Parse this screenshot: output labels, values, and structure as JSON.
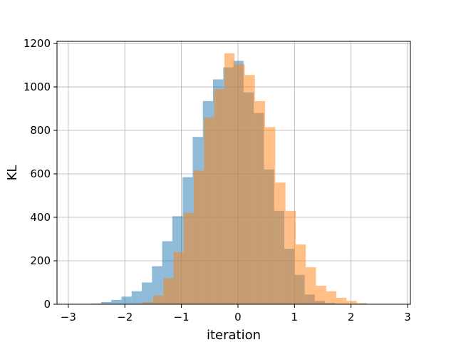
{
  "chart_data": {
    "type": "bar",
    "title": "",
    "xlabel": "iteration",
    "ylabel": "KL",
    "xlim": [
      -3.2,
      3.05
    ],
    "ylim": [
      0,
      1210
    ],
    "xticks": [
      -3,
      -2,
      -1,
      0,
      1,
      2,
      3
    ],
    "yticks": [
      0,
      200,
      400,
      600,
      800,
      1000,
      1200
    ],
    "grid": true,
    "legend": "none",
    "series": [
      {
        "color": "#1f77b4",
        "opacity": 0.5,
        "bins": [
          {
            "x0": -2.6,
            "x1": -2.42,
            "count": 3
          },
          {
            "x0": -2.42,
            "x1": -2.24,
            "count": 10
          },
          {
            "x0": -2.24,
            "x1": -2.06,
            "count": 20
          },
          {
            "x0": -2.06,
            "x1": -1.88,
            "count": 35
          },
          {
            "x0": -1.88,
            "x1": -1.7,
            "count": 60
          },
          {
            "x0": -1.7,
            "x1": -1.52,
            "count": 100
          },
          {
            "x0": -1.52,
            "x1": -1.34,
            "count": 175
          },
          {
            "x0": -1.34,
            "x1": -1.16,
            "count": 290
          },
          {
            "x0": -1.16,
            "x1": -0.98,
            "count": 405
          },
          {
            "x0": -0.98,
            "x1": -0.8,
            "count": 585
          },
          {
            "x0": -0.8,
            "x1": -0.62,
            "count": 770
          },
          {
            "x0": -0.62,
            "x1": -0.44,
            "count": 935
          },
          {
            "x0": -0.44,
            "x1": -0.26,
            "count": 1035
          },
          {
            "x0": -0.26,
            "x1": -0.08,
            "count": 1090
          },
          {
            "x0": -0.08,
            "x1": 0.1,
            "count": 1120
          },
          {
            "x0": 0.1,
            "x1": 0.28,
            "count": 975
          },
          {
            "x0": 0.28,
            "x1": 0.46,
            "count": 880
          },
          {
            "x0": 0.46,
            "x1": 0.64,
            "count": 620
          },
          {
            "x0": 0.64,
            "x1": 0.82,
            "count": 430
          },
          {
            "x0": 0.82,
            "x1": 1.0,
            "count": 255
          },
          {
            "x0": 1.0,
            "x1": 1.18,
            "count": 135
          },
          {
            "x0": 1.18,
            "x1": 1.36,
            "count": 45
          },
          {
            "x0": 1.36,
            "x1": 1.54,
            "count": 15
          },
          {
            "x0": 1.54,
            "x1": 1.72,
            "count": 5
          }
        ]
      },
      {
        "color": "#ff7f0e",
        "opacity": 0.5,
        "bins": [
          {
            "x0": -1.68,
            "x1": -1.5,
            "count": 10
          },
          {
            "x0": -1.5,
            "x1": -1.32,
            "count": 40
          },
          {
            "x0": -1.32,
            "x1": -1.14,
            "count": 120
          },
          {
            "x0": -1.14,
            "x1": -0.96,
            "count": 240
          },
          {
            "x0": -0.96,
            "x1": -0.78,
            "count": 420
          },
          {
            "x0": -0.78,
            "x1": -0.6,
            "count": 615
          },
          {
            "x0": -0.6,
            "x1": -0.42,
            "count": 860
          },
          {
            "x0": -0.42,
            "x1": -0.24,
            "count": 990
          },
          {
            "x0": -0.24,
            "x1": -0.06,
            "count": 1155
          },
          {
            "x0": -0.06,
            "x1": 0.12,
            "count": 1105
          },
          {
            "x0": 0.12,
            "x1": 0.3,
            "count": 1055
          },
          {
            "x0": 0.3,
            "x1": 0.48,
            "count": 935
          },
          {
            "x0": 0.48,
            "x1": 0.66,
            "count": 815
          },
          {
            "x0": 0.66,
            "x1": 0.84,
            "count": 560
          },
          {
            "x0": 0.84,
            "x1": 1.02,
            "count": 430
          },
          {
            "x0": 1.02,
            "x1": 1.2,
            "count": 275
          },
          {
            "x0": 1.2,
            "x1": 1.38,
            "count": 170
          },
          {
            "x0": 1.38,
            "x1": 1.56,
            "count": 85
          },
          {
            "x0": 1.56,
            "x1": 1.74,
            "count": 60
          },
          {
            "x0": 1.74,
            "x1": 1.92,
            "count": 30
          },
          {
            "x0": 1.92,
            "x1": 2.1,
            "count": 15
          },
          {
            "x0": 2.1,
            "x1": 2.28,
            "count": 5
          }
        ]
      }
    ]
  }
}
